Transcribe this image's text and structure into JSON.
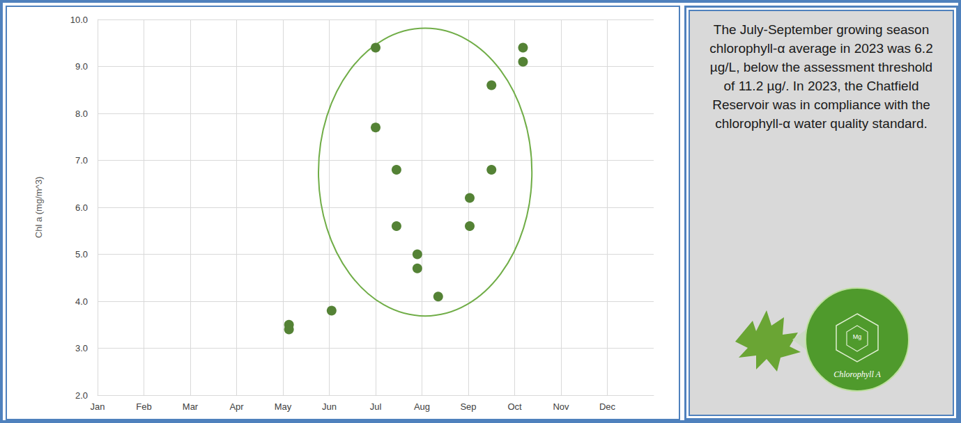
{
  "chart_data": {
    "type": "scatter",
    "y_label": "Chl a (mg/m^3)",
    "x": [
      4.13,
      4.13,
      5.05,
      6.0,
      6.0,
      6.45,
      6.45,
      6.9,
      6.9,
      7.35,
      8.03,
      8.03,
      8.5,
      8.5,
      9.18,
      9.18
    ],
    "values": [
      3.5,
      3.4,
      3.8,
      9.4,
      7.7,
      6.8,
      5.6,
      5.0,
      4.7,
      4.1,
      6.2,
      5.6,
      8.6,
      6.8,
      9.4,
      9.1
    ],
    "color": "#548235",
    "marker": "circle",
    "xlim": [
      0,
      12
    ],
    "xticks": [
      {
        "value": 0,
        "label": "Jan"
      },
      {
        "value": 1,
        "label": "Feb"
      },
      {
        "value": 2,
        "label": "Mar"
      },
      {
        "value": 3,
        "label": "Apr"
      },
      {
        "value": 4,
        "label": "May"
      },
      {
        "value": 5,
        "label": "Jun"
      },
      {
        "value": 6,
        "label": "Jul"
      },
      {
        "value": 7,
        "label": "Aug"
      },
      {
        "value": 8,
        "label": "Sep"
      },
      {
        "value": 9,
        "label": "Oct"
      },
      {
        "value": 10,
        "label": "Nov"
      },
      {
        "value": 11,
        "label": "Dec"
      }
    ],
    "ylim": [
      2,
      10
    ],
    "yticks": [
      {
        "value": 2,
        "label": "2.0"
      },
      {
        "value": 3,
        "label": "3.0"
      },
      {
        "value": 4,
        "label": "4.0"
      },
      {
        "value": 5,
        "label": "5.0"
      },
      {
        "value": 6,
        "label": "6.0"
      },
      {
        "value": 7,
        "label": "7.0"
      },
      {
        "value": 8,
        "label": "8.0"
      },
      {
        "value": 9,
        "label": "9.0"
      },
      {
        "value": 10,
        "label": "10.0"
      }
    ],
    "grid": true,
    "annotation": "The July-September growing season chlorophyll-α average in 2023 was 6.2 µg/L, below the assessment threshold of 11.2 µg/. In 2023, the Chatfield Reservoir was in compliance with the chlorophyll-α water quality standard.",
    "image_caption": "Chlorophyll A"
  }
}
